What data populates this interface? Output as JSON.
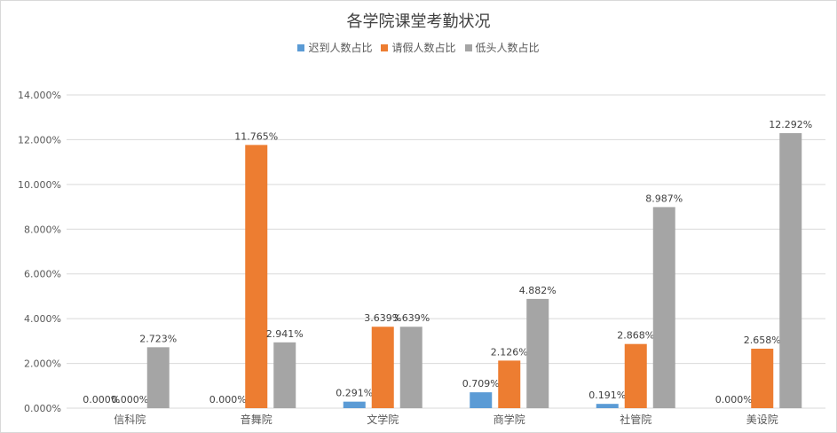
{
  "chart_data": {
    "type": "bar",
    "title": "各学院课堂考勤状况",
    "categories": [
      "信科院",
      "音舞院",
      "文学院",
      "商学院",
      "社管院",
      "美设院"
    ],
    "series": [
      {
        "name": "迟到人数占比",
        "color": "#5b9bd5",
        "values": [
          0.0,
          0.0,
          0.291,
          0.709,
          0.191,
          0.0
        ],
        "labels": [
          "0.000%",
          "0.000%",
          "0.291%",
          "0.709%",
          "0.191%",
          "0.000%"
        ]
      },
      {
        "name": "请假人数占比",
        "color": "#ed7d31",
        "values": [
          0.0,
          11.765,
          3.639,
          2.126,
          2.868,
          2.658
        ],
        "labels": [
          "0.000%",
          "11.765%",
          "3.639%",
          "2.126%",
          "2.868%",
          "2.658%"
        ]
      },
      {
        "name": "低头人数占比",
        "color": "#a5a5a5",
        "values": [
          2.723,
          2.941,
          3.639,
          4.882,
          8.987,
          12.292
        ],
        "labels": [
          "2.723%",
          "2.941%",
          "3.639%",
          "4.882%",
          "8.987%",
          "12.292%"
        ]
      }
    ],
    "yticks": [
      "0.000%",
      "2.000%",
      "4.000%",
      "6.000%",
      "8.000%",
      "10.000%",
      "12.000%",
      "14.000%"
    ],
    "ylim": [
      0,
      14
    ],
    "grid": true,
    "legend_position": "top"
  }
}
